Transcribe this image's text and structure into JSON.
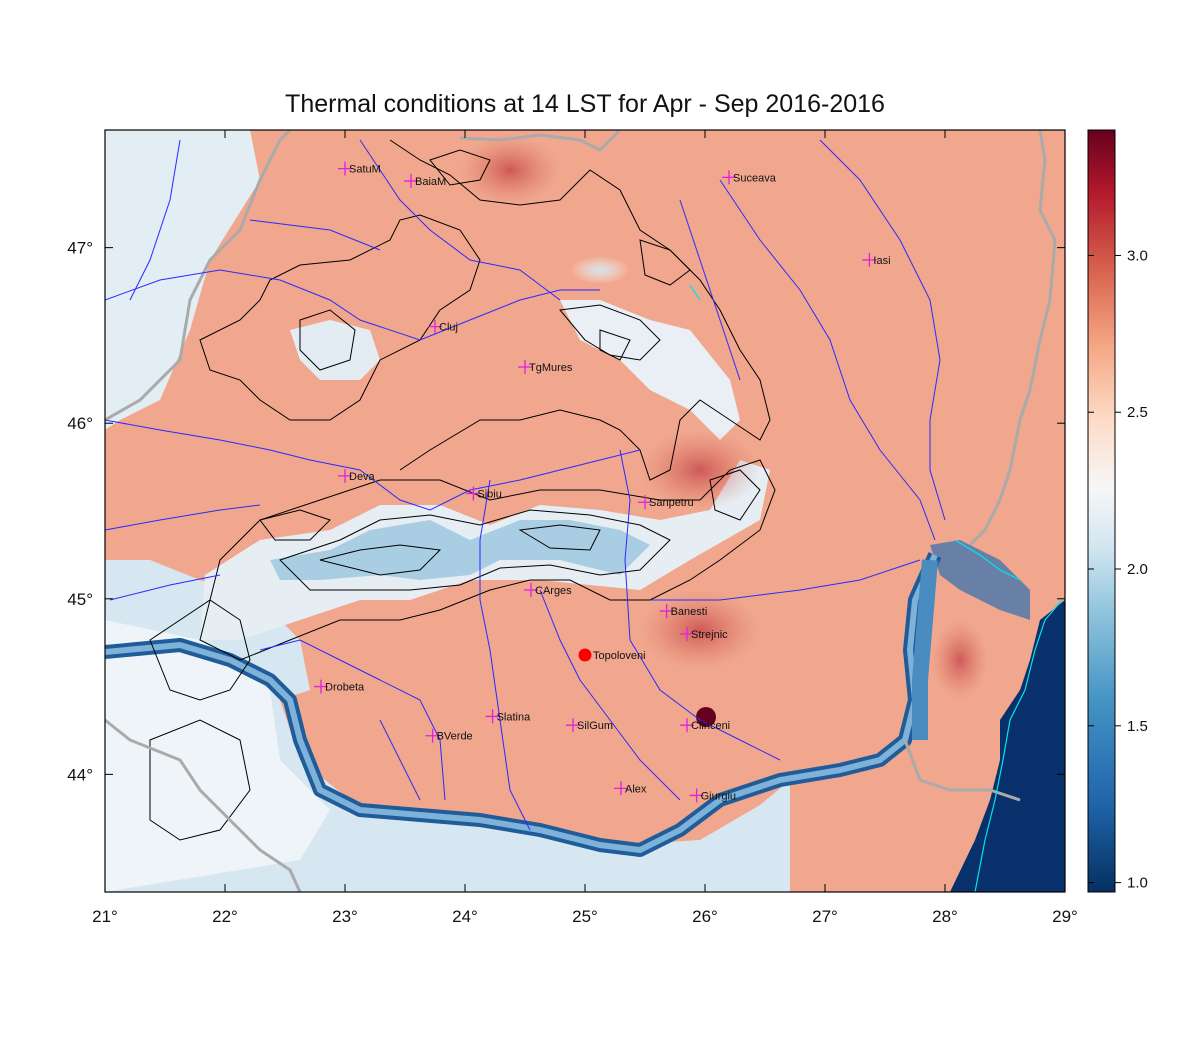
{
  "title": "Thermal conditions at 14 LST for Apr - Sep  2016-2016",
  "map": {
    "lon_range": [
      21,
      29
    ],
    "lat_range": [
      43.33,
      47.67
    ],
    "lon_ticks": [
      {
        "value": 21,
        "label": "21°"
      },
      {
        "value": 22,
        "label": "22°"
      },
      {
        "value": 23,
        "label": "23°"
      },
      {
        "value": 24,
        "label": "24°"
      },
      {
        "value": 25,
        "label": "25°"
      },
      {
        "value": 26,
        "label": "26°"
      },
      {
        "value": 27,
        "label": "27°"
      },
      {
        "value": 28,
        "label": "28°"
      },
      {
        "value": 29,
        "label": "29°"
      }
    ],
    "lat_ticks": [
      {
        "value": 44,
        "label": "44°"
      },
      {
        "value": 45,
        "label": "45°"
      },
      {
        "value": 46,
        "label": "46°"
      },
      {
        "value": 47,
        "label": "47°"
      }
    ],
    "colors": {
      "warm_dark": "#67001f",
      "warm": "#d6604d",
      "warm_light": "#f4a582",
      "neutral": "#f7f7f7",
      "cool_light": "#d1e5f0",
      "cool": "#4393c3",
      "cool_dark": "#053061",
      "river": "#1a1aff",
      "border": "#a9a9a9",
      "contour": "#000000",
      "station_marker": "#e020e0",
      "highlight_marker": "#ff0000",
      "coastline": "#00e5ee"
    },
    "stations": [
      {
        "name": "SatuM",
        "lon": 23.0,
        "lat": 47.45
      },
      {
        "name": "BaiaM",
        "lon": 23.55,
        "lat": 47.38
      },
      {
        "name": "Suceava",
        "lon": 26.2,
        "lat": 47.4
      },
      {
        "name": "Iasi",
        "lon": 27.37,
        "lat": 46.93
      },
      {
        "name": "Cluj",
        "lon": 23.75,
        "lat": 46.55
      },
      {
        "name": "TgMures",
        "lon": 24.5,
        "lat": 46.32
      },
      {
        "name": "Deva",
        "lon": 23.0,
        "lat": 45.7
      },
      {
        "name": "Sibiu",
        "lon": 24.07,
        "lat": 45.6
      },
      {
        "name": "Sanpetru",
        "lon": 25.5,
        "lat": 45.55
      },
      {
        "name": "CArges",
        "lon": 24.55,
        "lat": 45.05
      },
      {
        "name": "Banesti",
        "lon": 25.68,
        "lat": 44.93
      },
      {
        "name": "Strejnic",
        "lon": 25.85,
        "lat": 44.8
      },
      {
        "name": "Drobeta",
        "lon": 22.8,
        "lat": 44.5
      },
      {
        "name": "Slatina",
        "lon": 24.23,
        "lat": 44.33
      },
      {
        "name": "SilGum",
        "lon": 24.9,
        "lat": 44.28
      },
      {
        "name": "BVerde",
        "lon": 23.73,
        "lat": 44.22
      },
      {
        "name": "Clinceni",
        "lon": 25.85,
        "lat": 44.28
      },
      {
        "name": "Alex",
        "lon": 25.3,
        "lat": 43.92
      },
      {
        "name": "Giurgiu",
        "lon": 25.93,
        "lat": 43.88
      }
    ],
    "highlight_station": {
      "name": "Topoloveni",
      "lon": 25.0,
      "lat": 44.68
    }
  },
  "colorbar": {
    "min": 0.97,
    "max": 3.4,
    "ticks": [
      {
        "value": 1.0,
        "label": "1.0"
      },
      {
        "value": 1.5,
        "label": "1.5"
      },
      {
        "value": 2.0,
        "label": "2.0"
      },
      {
        "value": 2.5,
        "label": "2.5"
      },
      {
        "value": 3.0,
        "label": "3.0"
      }
    ]
  }
}
